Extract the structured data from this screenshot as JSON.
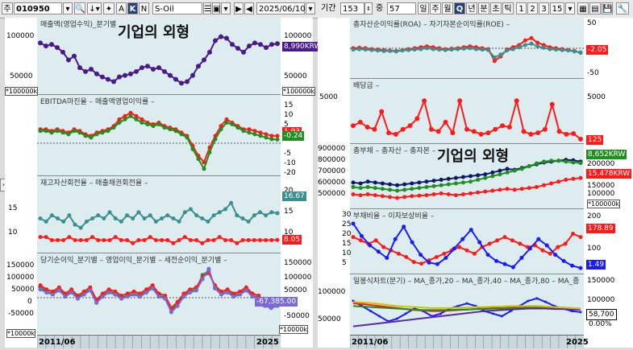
{
  "toolbar": {
    "code_type": "주",
    "code": "010950",
    "name": "S-Oil",
    "date": "2025/06/10",
    "period_label": "기간",
    "period_value": "153",
    "count_label": "중",
    "count_value": "57",
    "buttons": [
      "A",
      "K",
      "N"
    ],
    "freq_buttons": [
      "일",
      "주",
      "월",
      "Q",
      "년",
      "분",
      "초",
      "틱"
    ],
    "num_buttons": [
      "1",
      "2",
      "3",
      "15"
    ]
  },
  "left": {
    "panes": [
      {
        "title": "매출액(영업수익)_분기별",
        "scale": "*100000k",
        "ticks_left": [
          "100000",
          "50000"
        ],
        "ticks_right": [
          "100000",
          "50000"
        ],
        "tag": "8,990KRW"
      },
      {
        "title": "EBITDA마진율 – 매출액영업이익률 –",
        "scale": "*100000k",
        "ticks_left": [
          "15",
          "10",
          "5",
          "0",
          "-5",
          "-10",
          "-15",
          "-20"
        ],
        "ticks_right": [
          "15",
          "10",
          "5",
          "0",
          "-5",
          "-10",
          "-15",
          "-20"
        ],
        "tag1": "1.93",
        "tag2": "-0.24"
      },
      {
        "title": "재고자산회전율 – 매출채권회전율 –",
        "scale": "",
        "ticks_left": [
          "15",
          "10"
        ],
        "ticks_right": [
          "20",
          "15",
          "10",
          "5"
        ],
        "tag1": "16.67",
        "tag2": "8.05"
      },
      {
        "title": "당기순이익_분기별 – 영업이익_분기별 – 세전순이익_분기별 –",
        "scale": "*10000k",
        "ticks_left": [
          "150000",
          "100000",
          "50000",
          "0",
          "-50000",
          "-100000"
        ],
        "ticks_right": [
          "150000",
          "100000",
          "50000",
          "0",
          "-50000",
          "-100000"
        ],
        "tag": "-67,385.00"
      }
    ],
    "overlay": "기업의 외형",
    "x_start": "2011/06",
    "x_end": "2025"
  },
  "right": {
    "panes": [
      {
        "title": "총자산순이익률(ROA) – 자기자본순이익률(ROE) –",
        "ticks_right": [
          "50",
          "0",
          "-50"
        ],
        "ticks_left": [],
        "tag": "-2.05"
      },
      {
        "title": "배당금 –",
        "ticks_right": [
          "5000"
        ],
        "ticks_left": [
          "5000"
        ],
        "tag": "125"
      },
      {
        "title": "총부채 – 총자산 – 총자본 –",
        "ticks_left": [
          "900000",
          "800000",
          "700000",
          "600000",
          "500000"
        ],
        "ticks_right": [
          "200000",
          "150000",
          "100000"
        ],
        "tag1": "8,652KRW",
        "tag2": "15,478KRW",
        "scale": "*100000k"
      },
      {
        "title": "부채비율 – 이자보상비율 –",
        "ticks_left": [
          "30",
          "25",
          "20",
          "15",
          "10",
          "5",
          "0"
        ],
        "ticks_right": [
          "200",
          "150",
          "100",
          "50"
        ],
        "tag1": "178.89",
        "tag2": "1.49"
      },
      {
        "title": "일봉식차트(분기) – MA_종가,20 – MA_종가,40 – MA_종가,80 – MA_종",
        "ticks_left": [
          "100000",
          "50000"
        ],
        "ticks_right": [
          "150000",
          "100000",
          "50000"
        ],
        "tag1": "58,700",
        "tag2": "0.00%"
      }
    ],
    "overlay": "기업의 외형",
    "x_start": "2011/06",
    "x_end": "2025"
  },
  "colors": {
    "purple": "#4b1a8a",
    "red": "#ff1a1a",
    "green": "#1f8f1f",
    "teal": "#3a8f8f",
    "blue": "#1a1aff",
    "navy": "#0a1a6a",
    "yellow": "#d8c200",
    "orange": "#e07b00"
  }
}
